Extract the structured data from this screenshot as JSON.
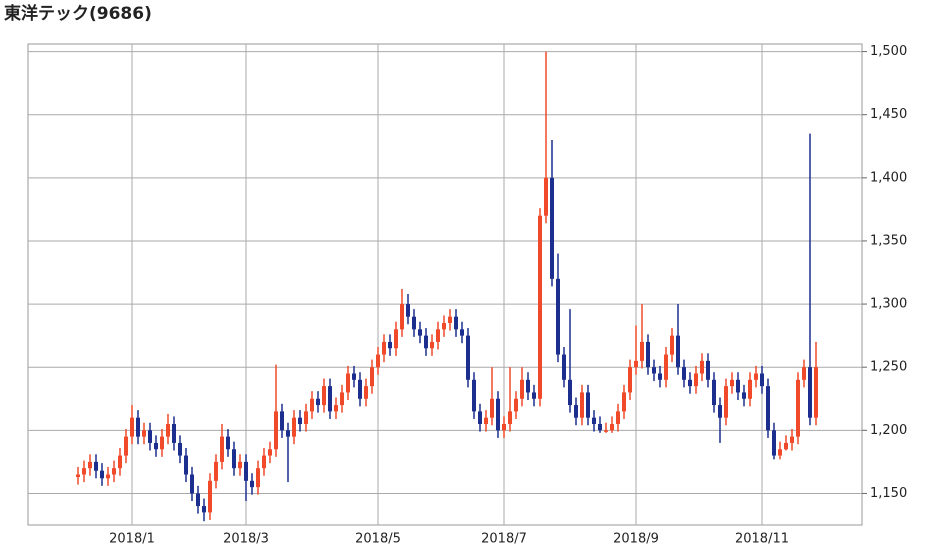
{
  "chart_data": {
    "type": "candlestick",
    "title": "東洋テック(9686)",
    "categories": [
      null,
      null,
      null,
      null,
      null,
      null,
      null,
      null,
      null,
      "2018/1",
      null,
      null,
      null,
      null,
      null,
      null,
      null,
      null,
      null,
      null,
      null,
      null,
      null,
      null,
      null,
      null,
      null,
      null,
      "2018/3",
      null,
      null,
      null,
      null,
      null,
      null,
      null,
      null,
      null,
      null,
      null,
      null,
      null,
      null,
      null,
      null,
      null,
      null,
      null,
      null,
      null,
      "2018/5",
      null,
      null,
      null,
      null,
      null,
      null,
      null,
      null,
      null,
      null,
      null,
      null,
      null,
      null,
      null,
      null,
      null,
      null,
      null,
      null,
      "2018/7",
      null,
      null,
      null,
      null,
      null,
      null,
      null,
      null,
      null,
      null,
      null,
      null,
      null,
      null,
      null,
      null,
      null,
      null,
      null,
      null,
      null,
      "2018/9",
      null,
      null,
      null,
      null,
      null,
      null,
      null,
      null,
      null,
      null,
      null,
      null,
      null,
      null,
      null,
      null,
      null,
      null,
      null,
      null,
      "2018/11",
      null,
      null,
      null,
      null,
      null,
      null,
      null,
      null,
      null
    ],
    "open": [
      1163,
      1165,
      1170,
      1175,
      1168,
      1162,
      1165,
      1170,
      1180,
      1195,
      1210,
      1195,
      1200,
      1190,
      1185,
      1195,
      1205,
      1190,
      1180,
      1165,
      1150,
      1140,
      1135,
      1160,
      1175,
      1195,
      1185,
      1170,
      1175,
      1160,
      1155,
      1170,
      1180,
      1185,
      1215,
      1200,
      1195,
      1210,
      1205,
      1215,
      1225,
      1220,
      1235,
      1215,
      1220,
      1230,
      1245,
      1240,
      1225,
      1235,
      1250,
      1260,
      1270,
      1265,
      1280,
      1300,
      1290,
      1280,
      1275,
      1265,
      1270,
      1280,
      1285,
      1290,
      1280,
      1275,
      1240,
      1215,
      1205,
      1210,
      1225,
      1200,
      1205,
      1215,
      1225,
      1240,
      1230,
      1225,
      1370,
      1400,
      1320,
      1260,
      1240,
      1220,
      1210,
      1230,
      1210,
      1205,
      1200,
      1200,
      1205,
      1215,
      1230,
      1250,
      1255,
      1270,
      1250,
      1245,
      1240,
      1260,
      1275,
      1250,
      1240,
      1235,
      1245,
      1255,
      1240,
      1220,
      1210,
      1235,
      1240,
      1230,
      1225,
      1240,
      1245,
      1235,
      1200,
      1180,
      1185,
      1190,
      1195,
      1240,
      1250,
      1210
    ],
    "high": [
      1171,
      1176,
      1181,
      1181,
      1174,
      1171,
      1176,
      1186,
      1201,
      1220,
      1216,
      1206,
      1206,
      1196,
      1201,
      1213,
      1211,
      1196,
      1186,
      1171,
      1156,
      1146,
      1166,
      1181,
      1205,
      1201,
      1191,
      1181,
      1181,
      1166,
      1176,
      1186,
      1191,
      1252,
      1221,
      1206,
      1216,
      1216,
      1221,
      1231,
      1231,
      1241,
      1241,
      1226,
      1236,
      1251,
      1251,
      1246,
      1241,
      1256,
      1266,
      1276,
      1276,
      1286,
      1312,
      1308,
      1296,
      1286,
      1281,
      1276,
      1286,
      1291,
      1296,
      1296,
      1286,
      1281,
      1246,
      1221,
      1216,
      1250,
      1231,
      1211,
      1250,
      1231,
      1250,
      1246,
      1236,
      1376,
      1500,
      1430,
      1340,
      1266,
      1296,
      1226,
      1236,
      1236,
      1216,
      1211,
      1206,
      1211,
      1221,
      1236,
      1256,
      1283,
      1300,
      1276,
      1256,
      1251,
      1266,
      1281,
      1300,
      1256,
      1246,
      1251,
      1261,
      1261,
      1246,
      1226,
      1241,
      1246,
      1246,
      1236,
      1246,
      1251,
      1251,
      1241,
      1206,
      1191,
      1196,
      1201,
      1246,
      1256,
      1435,
      1270
    ],
    "low": [
      1157,
      1159,
      1164,
      1162,
      1156,
      1156,
      1159,
      1164,
      1174,
      1189,
      1189,
      1189,
      1184,
      1179,
      1179,
      1189,
      1184,
      1174,
      1159,
      1144,
      1134,
      1128,
      1129,
      1154,
      1169,
      1179,
      1164,
      1164,
      1144,
      1149,
      1149,
      1164,
      1174,
      1179,
      1194,
      1159,
      1189,
      1199,
      1199,
      1209,
      1214,
      1214,
      1209,
      1209,
      1214,
      1224,
      1234,
      1219,
      1219,
      1229,
      1244,
      1254,
      1259,
      1259,
      1274,
      1284,
      1274,
      1269,
      1259,
      1259,
      1264,
      1274,
      1279,
      1274,
      1269,
      1234,
      1209,
      1199,
      1199,
      1204,
      1194,
      1194,
      1199,
      1209,
      1219,
      1224,
      1219,
      1219,
      1364,
      1314,
      1254,
      1234,
      1214,
      1204,
      1204,
      1204,
      1199,
      1198,
      1198,
      1198,
      1199,
      1209,
      1224,
      1244,
      1249,
      1244,
      1239,
      1234,
      1234,
      1254,
      1244,
      1234,
      1229,
      1229,
      1239,
      1234,
      1214,
      1190,
      1204,
      1229,
      1224,
      1219,
      1219,
      1234,
      1229,
      1194,
      1177,
      1177,
      1184,
      1184,
      1189,
      1234,
      1204,
      1204
    ],
    "close": [
      1165,
      1170,
      1175,
      1168,
      1162,
      1165,
      1170,
      1180,
      1195,
      1210,
      1195,
      1200,
      1190,
      1185,
      1195,
      1205,
      1190,
      1180,
      1165,
      1150,
      1140,
      1135,
      1160,
      1175,
      1195,
      1185,
      1170,
      1175,
      1160,
      1155,
      1170,
      1180,
      1185,
      1215,
      1200,
      1195,
      1210,
      1205,
      1215,
      1225,
      1220,
      1235,
      1215,
      1220,
      1230,
      1245,
      1240,
      1225,
      1235,
      1250,
      1260,
      1270,
      1265,
      1280,
      1300,
      1290,
      1280,
      1275,
      1265,
      1270,
      1280,
      1285,
      1290,
      1280,
      1275,
      1240,
      1215,
      1205,
      1210,
      1225,
      1200,
      1205,
      1215,
      1225,
      1240,
      1230,
      1225,
      1370,
      1400,
      1320,
      1260,
      1240,
      1220,
      1210,
      1230,
      1210,
      1205,
      1200,
      1200,
      1205,
      1215,
      1230,
      1250,
      1255,
      1270,
      1250,
      1245,
      1240,
      1260,
      1275,
      1250,
      1240,
      1235,
      1245,
      1255,
      1240,
      1220,
      1210,
      1235,
      1240,
      1230,
      1225,
      1240,
      1245,
      1235,
      1200,
      1180,
      1185,
      1190,
      1195,
      1240,
      1250,
      1210,
      1250
    ],
    "up_color": "#f04a2a",
    "down_color": "#1c2f8f",
    "ylim": [
      1125,
      1506
    ],
    "yticks": [
      {
        "value": 1150,
        "label": "1,150"
      },
      {
        "value": 1200,
        "label": "1,200"
      },
      {
        "value": 1250,
        "label": "1,250"
      },
      {
        "value": 1300,
        "label": "1,300"
      },
      {
        "value": 1350,
        "label": "1,350"
      },
      {
        "value": 1400,
        "label": "1,400"
      },
      {
        "value": 1450,
        "label": "1,450"
      },
      {
        "value": 1500,
        "label": "1,500"
      }
    ],
    "grid": true
  }
}
